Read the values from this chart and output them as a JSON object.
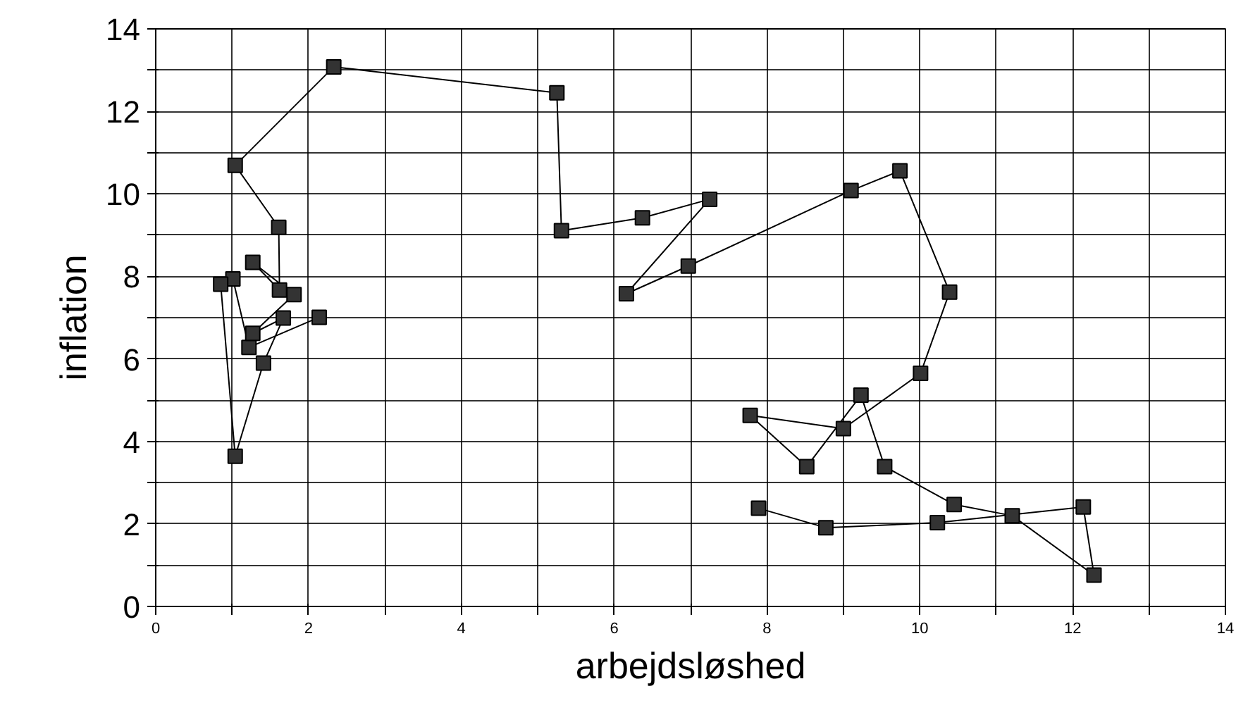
{
  "chart_data": {
    "type": "line",
    "xlabel": "arbejdsløshed",
    "ylabel": "inflation",
    "xlim": [
      0,
      14
    ],
    "ylim": [
      0,
      14
    ],
    "xticks": [
      0,
      {
        "value": 1,
        "label": null
      },
      2,
      {
        "value": 3,
        "label": null
      },
      4,
      {
        "value": 5,
        "label": null
      },
      6,
      {
        "value": 7,
        "label": null
      },
      8,
      {
        "value": 9,
        "label": null
      },
      10,
      {
        "value": 11,
        "label": null
      },
      12,
      {
        "value": 13,
        "label": null
      },
      14
    ],
    "yticks": [
      0,
      {
        "value": 1,
        "label": null
      },
      2,
      {
        "value": 3,
        "label": null
      },
      4,
      {
        "value": 5,
        "label": null
      },
      6,
      {
        "value": 7,
        "label": null
      },
      8,
      {
        "value": 9,
        "label": null
      },
      10,
      {
        "value": 11,
        "label": null
      },
      12,
      {
        "value": 13,
        "label": null
      },
      14
    ],
    "grid": true,
    "marker": "square",
    "line_style": "solid",
    "series": [
      {
        "color": "#000000",
        "x": [
          2.14,
          1.22,
          1.01,
          0.85,
          1.04,
          1.41,
          1.67,
          1.27,
          1.81,
          1.27,
          1.62,
          1.61,
          1.04,
          2.33,
          5.25,
          5.31,
          6.37,
          7.25,
          6.16,
          6.97,
          9.1,
          9.74,
          10.39,
          10.01,
          9.0,
          7.78,
          8.52,
          9.23,
          9.54,
          10.45,
          11.21,
          12.28,
          12.14,
          10.23,
          8.77,
          7.89
        ],
        "values": [
          7.01,
          6.28,
          7.94,
          7.81,
          3.64,
          5.9,
          6.99,
          6.62,
          7.56,
          8.34,
          7.67,
          9.19,
          10.69,
          13.08,
          12.45,
          9.11,
          9.42,
          9.87,
          7.58,
          8.25,
          10.08,
          10.56,
          7.62,
          5.65,
          4.31,
          4.63,
          3.39,
          5.12,
          3.39,
          2.47,
          2.2,
          0.76,
          2.41,
          2.03,
          1.91,
          2.38
        ]
      }
    ]
  }
}
